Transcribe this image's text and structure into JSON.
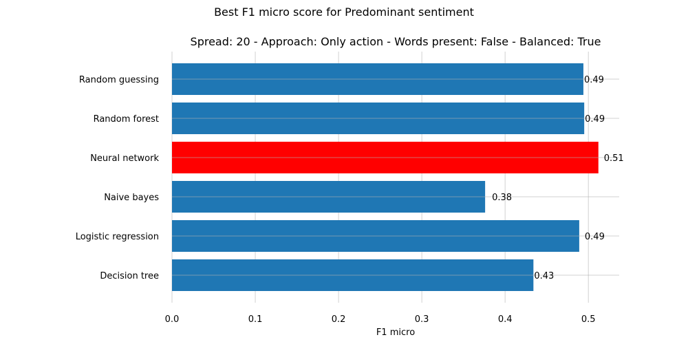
{
  "figure": {
    "suptitle": "Best F1 micro score for Predominant sentiment",
    "subtitle": "Spread: 20 - Approach: Only action - Words present: False - Balanced: True"
  },
  "chart_data": {
    "type": "bar",
    "orientation": "horizontal",
    "categories": [
      "Random guessing",
      "Random forest",
      "Neural network",
      "Naive bayes",
      "Logistic regression",
      "Decision tree"
    ],
    "values": [
      0.494,
      0.495,
      0.512,
      0.376,
      0.489,
      0.434
    ],
    "value_labels": [
      "0.49",
      "0.49",
      "0.51",
      "0.38",
      "0.49",
      "0.43"
    ],
    "highlight_index": 2,
    "colors": {
      "default": "#1f77b4",
      "highlight": "#ff0000",
      "grid": "#b0b0b0"
    },
    "xlabel": "F1 micro",
    "ylabel": "",
    "xlim": [
      0,
      0.537
    ],
    "xticks": [
      0.0,
      0.1,
      0.2,
      0.3,
      0.4,
      0.5
    ],
    "xtick_labels": [
      "0.0",
      "0.1",
      "0.2",
      "0.3",
      "0.4",
      "0.5"
    ],
    "grid": true,
    "legend": "none"
  }
}
